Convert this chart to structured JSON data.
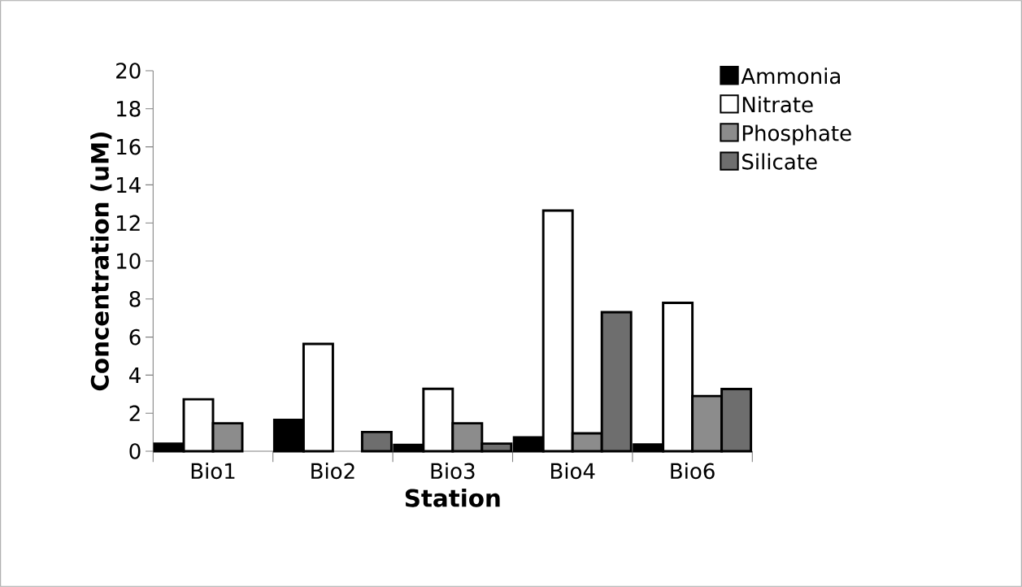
{
  "chart_data": {
    "type": "bar",
    "xlabel": "Station",
    "ylabel": "Concentration (uM)",
    "categories": [
      "Bio1",
      "Bio2",
      "Bio3",
      "Bio4",
      "Bio6"
    ],
    "series": [
      {
        "name": "Ammonia",
        "color": "#000000",
        "values": [
          0.4,
          1.65,
          0.33,
          0.73,
          0.35
        ]
      },
      {
        "name": "Nitrate",
        "color": "#ffffff",
        "values": [
          2.73,
          5.64,
          3.28,
          12.65,
          7.8
        ]
      },
      {
        "name": "Phosphate",
        "color": "#8c8c8c",
        "values": [
          1.47,
          null,
          1.47,
          0.94,
          2.9
        ]
      },
      {
        "name": "Silicate",
        "color": "#6e6e6e",
        "values": [
          null,
          1.01,
          0.4,
          7.31,
          3.27
        ]
      }
    ],
    "ylim": [
      0,
      20
    ],
    "yticks": [
      0,
      2,
      4,
      6,
      8,
      10,
      12,
      14,
      16,
      18,
      20
    ],
    "grid": false,
    "legend": "top right"
  }
}
